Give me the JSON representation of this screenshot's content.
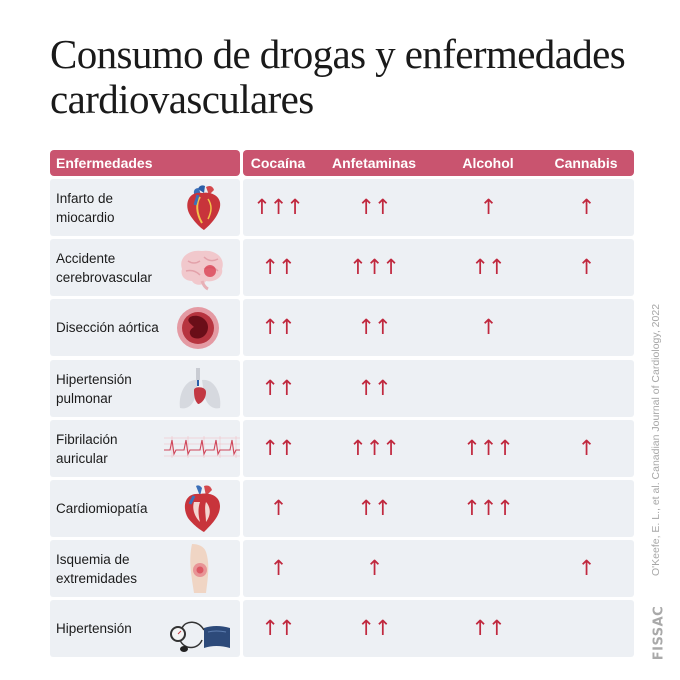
{
  "title": "Consumo de drogas y enfermedades cardiovasculares",
  "columns": [
    "Enfermedades",
    "Cocaína",
    "Anfetaminas",
    "Alcohol",
    "Cannabis"
  ],
  "accent_color": "#c9546f",
  "arrow_color": "#c0283e",
  "rows": [
    {
      "label": "Infarto de miocardio",
      "illustration": "heart-icon",
      "cocaina": "↑↑↑",
      "anfetaminas": "↑↑",
      "alcohol": "↑",
      "cannabis": "↑"
    },
    {
      "label": "Accidente cerebrovascular",
      "illustration": "brain-icon",
      "cocaina": "↑↑",
      "anfetaminas": "↑↑↑",
      "alcohol": "↑↑",
      "cannabis": "↑"
    },
    {
      "label": "Disección aórtica",
      "illustration": "aorta-icon",
      "cocaina": "↑↑",
      "anfetaminas": "↑↑",
      "alcohol": "↑",
      "cannabis": ""
    },
    {
      "label": "Hipertensión pulmonar",
      "illustration": "lungs-icon",
      "cocaina": "↑↑",
      "anfetaminas": "↑↑",
      "alcohol": "",
      "cannabis": ""
    },
    {
      "label": "Fibrilación auricular",
      "illustration": "ecg-icon",
      "cocaina": "↑↑",
      "anfetaminas": "↑↑↑",
      "alcohol": "↑↑↑",
      "cannabis": "↑"
    },
    {
      "label": "Cardiomiopatía",
      "illustration": "heart-section-icon",
      "cocaina": "↑",
      "anfetaminas": "↑↑",
      "alcohol": "↑↑↑",
      "cannabis": ""
    },
    {
      "label": "Isquemia de extremidades",
      "illustration": "leg-icon",
      "cocaina": "↑",
      "anfetaminas": "↑",
      "alcohol": "",
      "cannabis": "↑"
    },
    {
      "label": "Hipertensión",
      "illustration": "blood-pressure-monitor-icon",
      "cocaina": "↑↑",
      "anfetaminas": "↑↑",
      "alcohol": "↑↑",
      "cannabis": ""
    }
  ],
  "source": "O'Keefe, E. L., et al. Canadian Journal of Cardiology, 2022",
  "logo": "FISSAC"
}
